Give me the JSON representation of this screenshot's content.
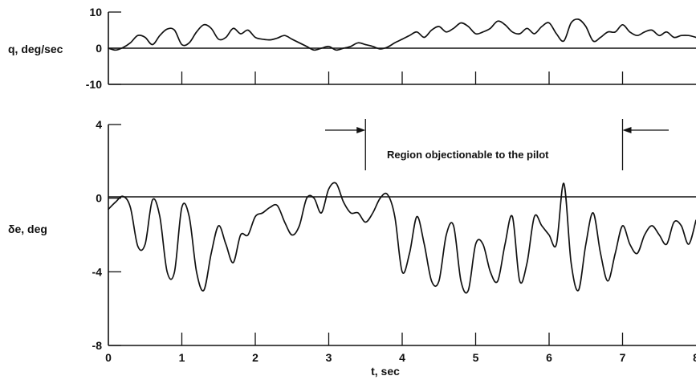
{
  "chart_data": [
    {
      "type": "line",
      "ylabel": "q, deg/sec",
      "ylim": [
        -10,
        10
      ],
      "yticks": [
        "10",
        "0",
        "-10"
      ],
      "xlim": [
        0,
        8
      ],
      "series": [
        {
          "x": [
            0,
            0.1,
            0.2,
            0.3,
            0.4,
            0.5,
            0.6,
            0.7,
            0.8,
            0.9,
            1.0,
            1.1,
            1.2,
            1.3,
            1.4,
            1.5,
            1.6,
            1.7,
            1.8,
            1.9,
            2.0,
            2.1,
            2.2,
            2.3,
            2.4,
            2.5,
            2.6,
            2.7,
            2.8,
            2.9,
            3.0,
            3.1,
            3.2,
            3.3,
            3.4,
            3.5,
            3.6,
            3.7,
            3.8,
            3.9,
            4.0,
            4.1,
            4.2,
            4.3,
            4.4,
            4.5,
            4.6,
            4.7,
            4.8,
            4.9,
            5.0,
            5.1,
            5.2,
            5.3,
            5.4,
            5.5,
            5.6,
            5.7,
            5.8,
            5.9,
            6.0,
            6.1,
            6.2,
            6.3,
            6.4,
            6.5,
            6.6,
            6.7,
            6.8,
            6.9,
            7.0,
            7.1,
            7.2,
            7.3,
            7.4,
            7.5,
            7.6,
            7.7,
            7.8,
            7.9,
            8.0
          ],
          "y": [
            0,
            -0.5,
            0.2,
            1.5,
            3.5,
            3.0,
            1.0,
            3.5,
            5.3,
            5.0,
            1.0,
            1.5,
            4.5,
            6.5,
            5.5,
            2.5,
            3.0,
            5.5,
            4.0,
            5.0,
            3.0,
            2.5,
            2.3,
            2.8,
            3.5,
            2.5,
            1.5,
            0.5,
            -0.5,
            0.0,
            0.5,
            -0.5,
            0.0,
            0.5,
            1.5,
            1.0,
            0.5,
            -0.2,
            0.3,
            1.5,
            2.5,
            3.5,
            4.5,
            3.0,
            5.0,
            6.0,
            4.5,
            5.5,
            7.0,
            6.0,
            4.0,
            4.5,
            5.5,
            7.5,
            6.5,
            4.5,
            4.0,
            5.5,
            4.0,
            6.0,
            7.0,
            4.0,
            2.0,
            7.0,
            8.0,
            6.0,
            2.0,
            3.0,
            4.5,
            4.5,
            6.5,
            4.5,
            3.5,
            4.5,
            5.0,
            3.5,
            4.5,
            3.0,
            3.5,
            3.5,
            3.0
          ]
        }
      ]
    },
    {
      "type": "line",
      "xlabel": "t, sec",
      "ylabel": "δe, deg",
      "ylim": [
        -8,
        4
      ],
      "yticks": [
        "4",
        "0",
        "-4",
        "-8"
      ],
      "xlim": [
        0,
        8
      ],
      "xticks": [
        "0",
        "1",
        "2",
        "3",
        "4",
        "5",
        "6",
        "7",
        "8"
      ],
      "annotation": {
        "text": "Region objectionable to the pilot",
        "x_start": 3.5,
        "x_end": 7.0
      },
      "series": [
        {
          "x": [
            0,
            0.1,
            0.2,
            0.3,
            0.4,
            0.5,
            0.6,
            0.7,
            0.8,
            0.9,
            1.0,
            1.1,
            1.2,
            1.3,
            1.4,
            1.5,
            1.6,
            1.7,
            1.8,
            1.9,
            2.0,
            2.1,
            2.2,
            2.3,
            2.4,
            2.5,
            2.6,
            2.7,
            2.8,
            2.9,
            3.0,
            3.1,
            3.2,
            3.3,
            3.4,
            3.5,
            3.6,
            3.7,
            3.8,
            3.9,
            4.0,
            4.1,
            4.2,
            4.3,
            4.4,
            4.5,
            4.6,
            4.7,
            4.8,
            4.9,
            5.0,
            5.1,
            5.2,
            5.3,
            5.4,
            5.5,
            5.6,
            5.7,
            5.8,
            5.9,
            6.0,
            6.1,
            6.2,
            6.3,
            6.4,
            6.5,
            6.6,
            6.7,
            6.8,
            6.9,
            7.0,
            7.1,
            7.2,
            7.3,
            7.4,
            7.5,
            7.6,
            7.7,
            7.8,
            7.9,
            8.0
          ],
          "y": [
            -0.6,
            -0.2,
            0.1,
            -0.5,
            -2.6,
            -2.5,
            -0.1,
            -1.0,
            -4.0,
            -4.0,
            -0.5,
            -1.0,
            -4.0,
            -5.0,
            -3.0,
            -1.5,
            -2.5,
            -3.5,
            -2.0,
            -2.0,
            -1.0,
            -0.8,
            -0.5,
            -0.4,
            -1.3,
            -2.0,
            -1.5,
            0.0,
            0.0,
            -0.8,
            0.5,
            0.8,
            -0.2,
            -0.8,
            -0.8,
            -1.3,
            -0.8,
            0.0,
            0.2,
            -1.0,
            -4.0,
            -3.0,
            -1.0,
            -2.5,
            -4.5,
            -4.5,
            -2.0,
            -1.5,
            -4.5,
            -5.0,
            -2.5,
            -2.5,
            -4.0,
            -4.5,
            -2.5,
            -1.0,
            -4.5,
            -3.5,
            -1.0,
            -1.5,
            -2.0,
            -2.5,
            0.8,
            -3.5,
            -5.0,
            -2.5,
            -0.8,
            -3.0,
            -4.5,
            -3.0,
            -1.5,
            -2.5,
            -3.0,
            -2.0,
            -1.5,
            -2.0,
            -2.5,
            -1.3,
            -1.5,
            -2.5,
            -1.2
          ]
        }
      ]
    }
  ]
}
